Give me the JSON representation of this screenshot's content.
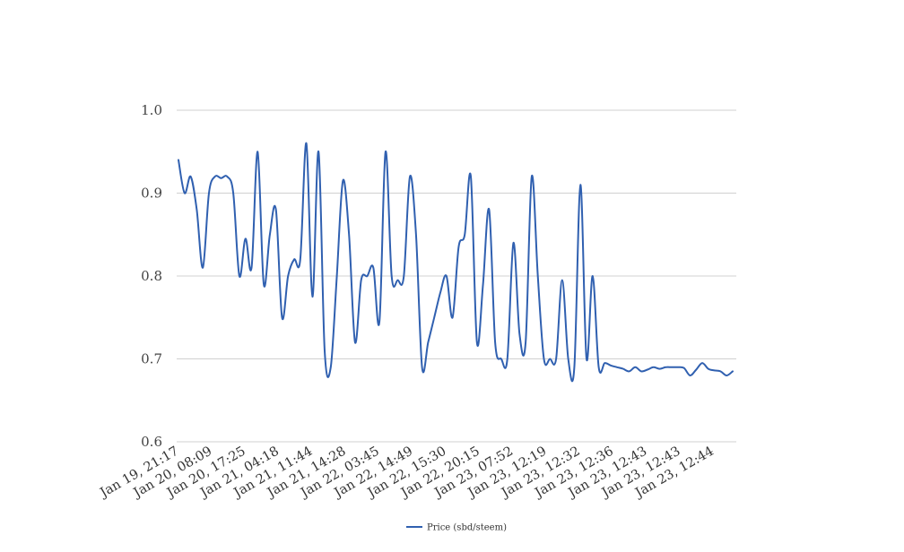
{
  "chart_data": {
    "type": "line",
    "title": "",
    "xlabel": "",
    "ylabel": "",
    "ylim": [
      0.6,
      1.0
    ],
    "yticks": [
      "0.6",
      "0.7",
      "0.8",
      "0.9",
      "1.0"
    ],
    "grid": true,
    "legend_position": "bottom-center",
    "x_tick_labels": [
      "Jan 19, 21:17",
      "Jan 20, 08:09",
      "Jan 20, 17:25",
      "Jan 21, 04:18",
      "Jan 21, 11:44",
      "Jan 21, 14:28",
      "Jan 22, 03:45",
      "Jan 22, 14:49",
      "Jan 22, 15:30",
      "Jan 22, 20:15",
      "Jan 23, 07:52",
      "Jan 23, 12:19",
      "Jan 23, 12:32",
      "Jan 23, 12:36",
      "Jan 23, 12:43",
      "Jan 23, 12:43",
      "Jan 23, 12:44"
    ],
    "series": [
      {
        "name": "Price (sbd/steem)",
        "color": "#3060b0",
        "values": [
          0.94,
          0.9,
          0.92,
          0.88,
          0.81,
          0.9,
          0.92,
          0.918,
          0.92,
          0.9,
          0.8,
          0.845,
          0.81,
          0.95,
          0.79,
          0.85,
          0.88,
          0.75,
          0.8,
          0.82,
          0.82,
          0.96,
          0.775,
          0.95,
          0.71,
          0.69,
          0.8,
          0.915,
          0.85,
          0.72,
          0.795,
          0.8,
          0.81,
          0.745,
          0.95,
          0.8,
          0.795,
          0.8,
          0.92,
          0.85,
          0.69,
          0.72,
          0.75,
          0.78,
          0.8,
          0.75,
          0.835,
          0.85,
          0.92,
          0.72,
          0.79,
          0.88,
          0.72,
          0.7,
          0.7,
          0.84,
          0.73,
          0.72,
          0.92,
          0.8,
          0.7,
          0.7,
          0.7,
          0.795,
          0.7,
          0.69,
          0.91,
          0.7,
          0.8,
          0.69,
          0.695,
          0.692,
          0.69,
          0.688,
          0.685,
          0.69,
          0.685,
          0.687,
          0.69,
          0.688,
          0.69,
          0.69,
          0.69,
          0.689,
          0.68,
          0.687,
          0.695,
          0.688,
          0.686,
          0.685,
          0.68,
          0.685
        ]
      }
    ]
  }
}
